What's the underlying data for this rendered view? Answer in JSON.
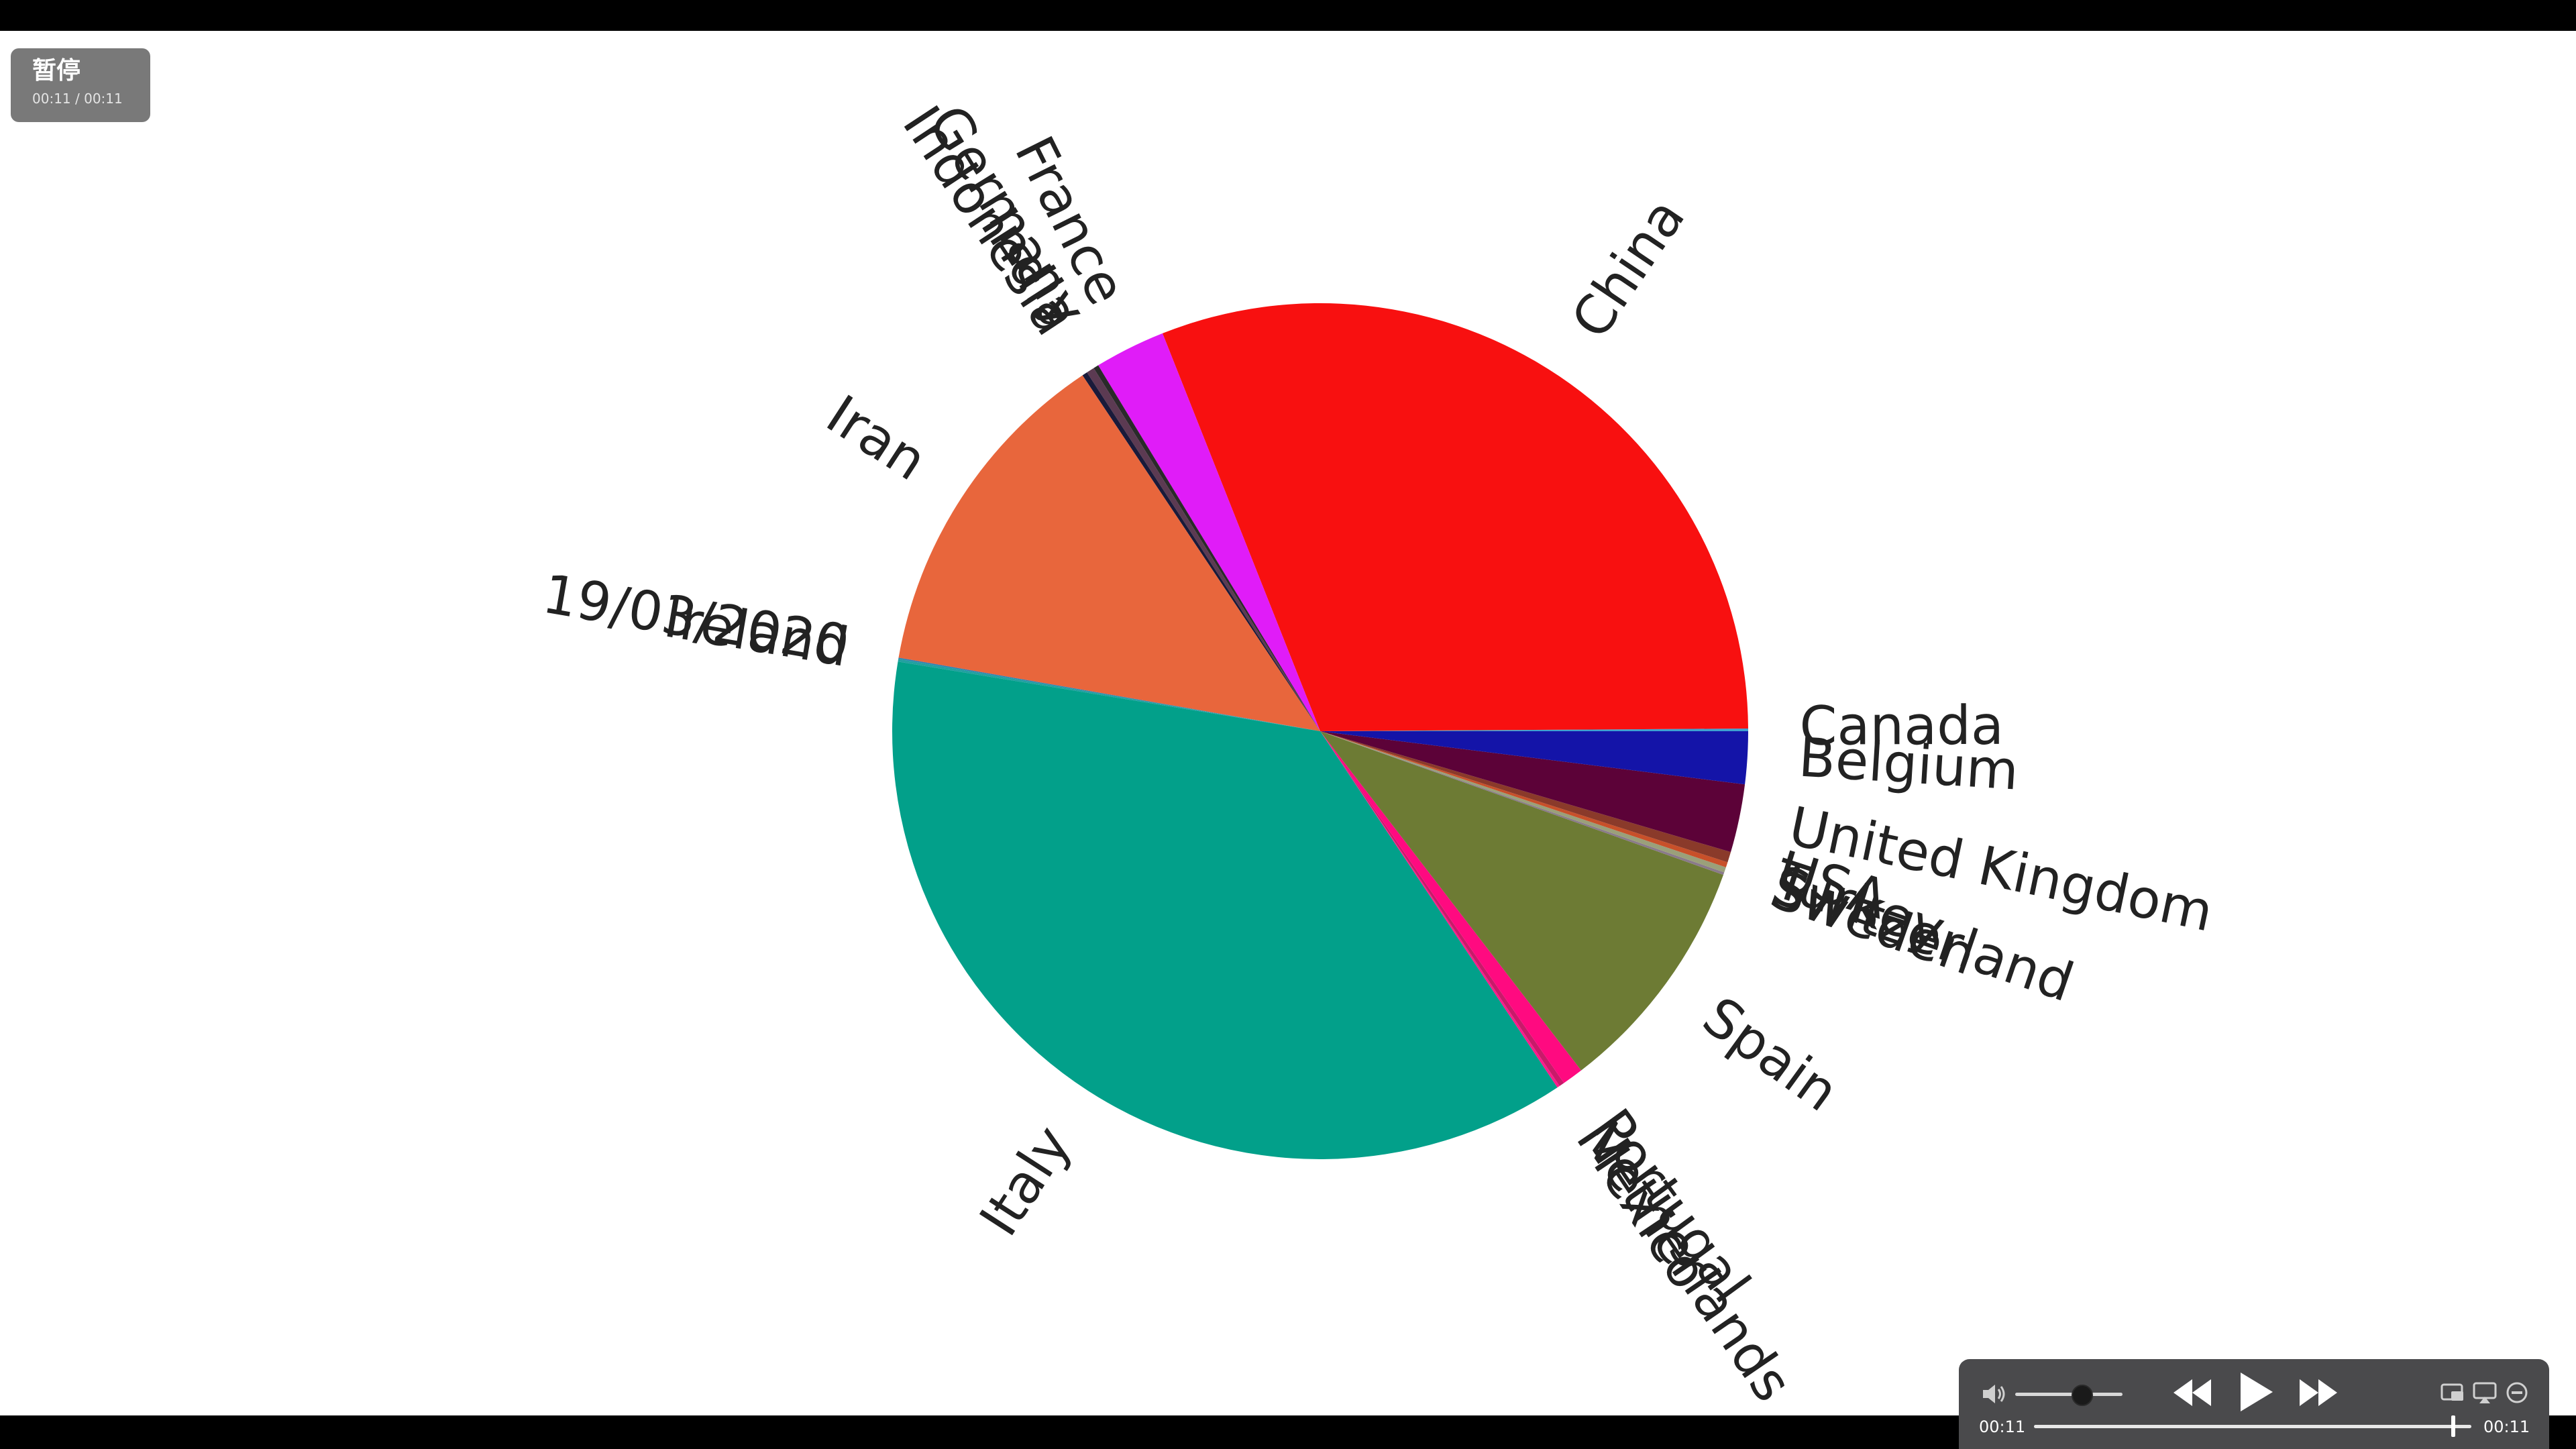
{
  "player": {
    "status_label": "暂停",
    "badge_time": "00:11 / 00:11",
    "current_time": "00:11",
    "total_time": "00:11",
    "progress": 1.0,
    "volume": 0.55,
    "icons": {
      "volume": "speaker-icon",
      "rewind": "rewind-icon",
      "play": "play-icon",
      "forward": "fast-forward-icon",
      "pip": "picture-in-picture-icon",
      "airplay": "airplay-icon",
      "more": "more-icon"
    }
  },
  "chart_data": {
    "type": "pie",
    "title": "",
    "start_angle_deg": 0,
    "direction": "counterclockwise",
    "label_rotation": "radial",
    "categories": [
      "Canada",
      "China",
      "France",
      "Germany",
      "India",
      "Indonesia",
      "Iran",
      "19/03/2020",
      "Ireland",
      "Italy",
      "Mexico",
      "Netherlands",
      "Portugal",
      "Spain",
      "Sweden",
      "Switzerland",
      "Turkey",
      "USA",
      "United Kingdom",
      "Belgium"
    ],
    "values": [
      0.1,
      31.2,
      2.7,
      0.2,
      0.3,
      0.2,
      13.0,
      0.05,
      0.1,
      37.3,
      0.1,
      0.2,
      0.8,
      9.2,
      0.1,
      0.2,
      0.2,
      0.4,
      2.6,
      2.0
    ],
    "colors": [
      "#3fa0d0",
      "#f81010",
      "#e01cf8",
      "#2a2a2a",
      "#5c3a52",
      "#1a1a3a",
      "#e8663c",
      "#2f7fb0",
      "#22a0a0",
      "#02a08a",
      "#ff1a8c",
      "#c81a6a",
      "#ff0a80",
      "#6d7b34",
      "#8a7a8a",
      "#9aa07a",
      "#c8502a",
      "#8a3a2a",
      "#5c0238",
      "#1414a8"
    ]
  }
}
